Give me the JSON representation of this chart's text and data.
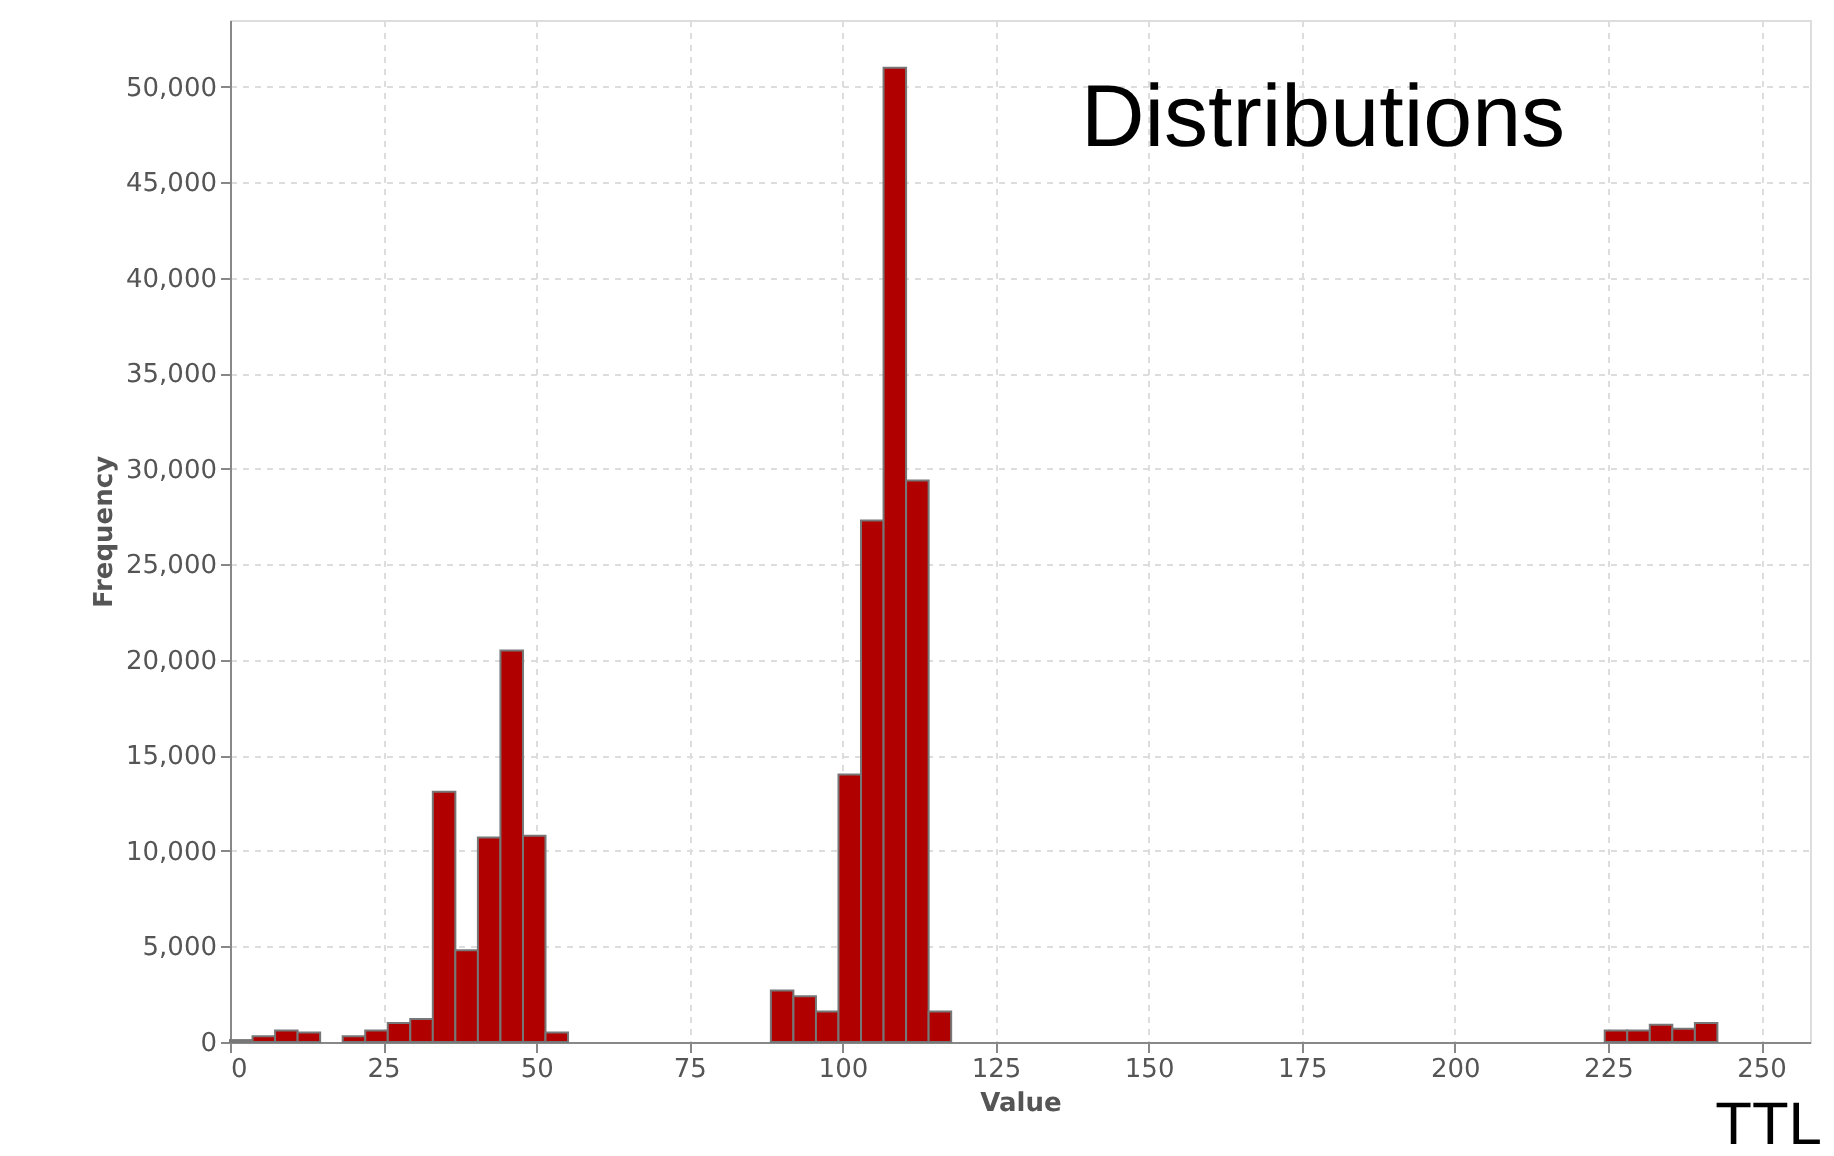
{
  "chart_data": {
    "type": "histogram",
    "title": "Distributions",
    "xlabel": "Value",
    "ylabel": "Frequency",
    "annotations": [
      "TTL"
    ],
    "bins": [
      0,
      3.68,
      7.36,
      11.04,
      14.72,
      18.4,
      22.08,
      25.76,
      29.44,
      33.12,
      36.8,
      40.48,
      44.16,
      47.84,
      51.52,
      55.2,
      58.88,
      62.56,
      66.24,
      69.92,
      73.6,
      77.28,
      80.96,
      84.64,
      88.32,
      92,
      95.68,
      99.36,
      103.04,
      106.72,
      110.4,
      114.08,
      117.76,
      121.44,
      125.12,
      128.8,
      132.48,
      136.16,
      139.84,
      143.52,
      147.2,
      150.88,
      154.56,
      158.24,
      161.92,
      165.6,
      169.28,
      172.96,
      176.64,
      180.32,
      184,
      187.68,
      191.36,
      195.04,
      198.72,
      202.4,
      206.08,
      209.76,
      213.44,
      217.12,
      220.8,
      224.48,
      228.16,
      231.84,
      235.52,
      239.2,
      242.88
    ],
    "values": [
      100,
      300,
      600,
      500,
      0,
      300,
      600,
      1000,
      1200,
      13100,
      4800,
      10700,
      20500,
      10800,
      500,
      0,
      0,
      0,
      0,
      0,
      0,
      0,
      0,
      0,
      2700,
      2400,
      1600,
      14000,
      27300,
      51000,
      29400,
      1600,
      0,
      0,
      0,
      0,
      0,
      0,
      0,
      0,
      0,
      0,
      0,
      0,
      0,
      0,
      0,
      0,
      0,
      0,
      0,
      0,
      0,
      0,
      0,
      0,
      0,
      0,
      0,
      0,
      0,
      600,
      600,
      900,
      700,
      1000
    ],
    "color": "#b00000",
    "xlim": [
      0,
      258
    ],
    "xticks": [
      0,
      25,
      50,
      75,
      100,
      125,
      150,
      175,
      200,
      225,
      250
    ],
    "ylim": [
      0,
      53500
    ],
    "yticks": [
      {
        "value": 0,
        "label": "0"
      },
      {
        "value": 5000,
        "label": "5,000"
      },
      {
        "value": 10000,
        "label": "10,000"
      },
      {
        "value": 15000,
        "label": "15,000"
      },
      {
        "value": 20000,
        "label": "20,000"
      },
      {
        "value": 25000,
        "label": "25,000"
      },
      {
        "value": 30000,
        "label": "30,000"
      },
      {
        "value": 35000,
        "label": "35,000"
      },
      {
        "value": 40000,
        "label": "40,000"
      },
      {
        "value": 45000,
        "label": "45,000"
      },
      {
        "value": 50000,
        "label": "50,000"
      }
    ],
    "grid": true
  }
}
